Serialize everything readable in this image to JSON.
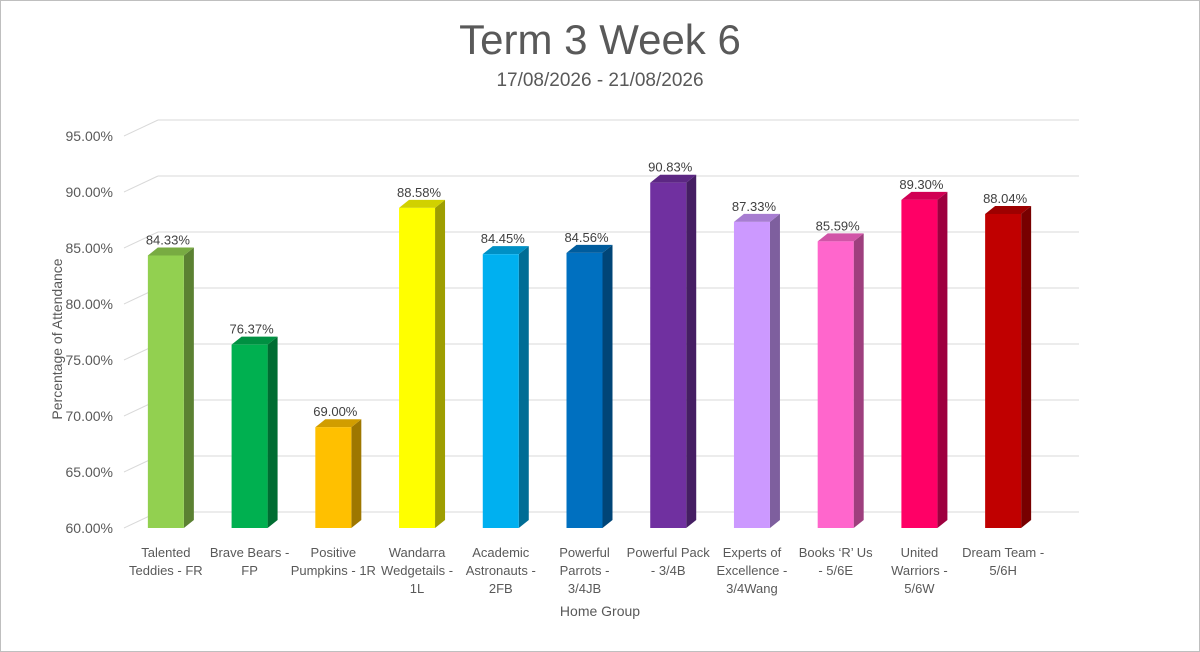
{
  "chart_data": {
    "type": "bar",
    "title": "Term 3 Week 6",
    "subtitle": "17/08/2026 - 21/08/2026",
    "xlabel": "Home Group",
    "ylabel": "Percentage of Attendance",
    "ylim": [
      60,
      95
    ],
    "yticks": [
      "60.00%",
      "65.00%",
      "70.00%",
      "75.00%",
      "80.00%",
      "85.00%",
      "90.00%",
      "95.00%"
    ],
    "grid": true,
    "categories": [
      "Talented Teddies - FR",
      "Brave Bears - FP",
      "Positive Pumpkins - 1R",
      "Wandarra Wedgetails - 1L",
      "Academic Astronauts - 2FB",
      "Powerful Parrots - 3/4JB",
      "Powerful Pack - 3/4B",
      "Experts of Excellence - 3/4Wang",
      "Books ‘R’ Us - 5/6E",
      "United Warriors - 5/6W",
      "Dream Team - 5/6H"
    ],
    "values": [
      84.33,
      76.37,
      69.0,
      88.58,
      84.45,
      84.56,
      90.83,
      87.33,
      85.59,
      89.3,
      88.04
    ],
    "data_labels": [
      "84.33%",
      "76.37%",
      "69.00%",
      "88.58%",
      "84.45%",
      "84.56%",
      "90.83%",
      "87.33%",
      "85.59%",
      "89.30%",
      "88.04%"
    ],
    "colors": [
      "#92d050",
      "#00b050",
      "#ffc000",
      "#ffff00",
      "#00b0f0",
      "#0070c0",
      "#7030a0",
      "#cc99ff",
      "#ff66cc",
      "#ff0066",
      "#c00000"
    ]
  }
}
